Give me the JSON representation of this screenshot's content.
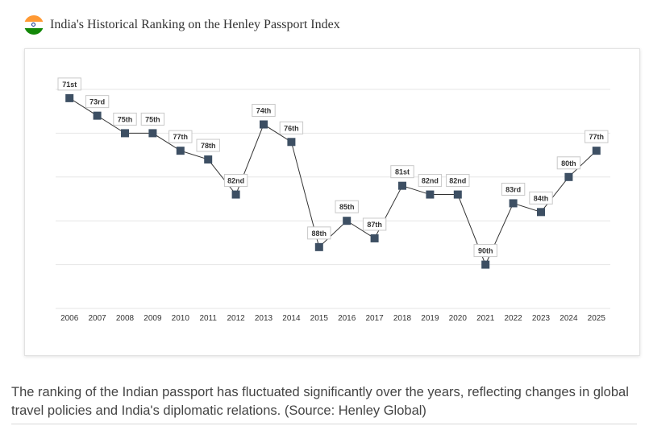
{
  "header": {
    "title": "India's Historical Ranking on the Henley Passport Index",
    "flag_icon": "india-flag-icon",
    "flag_colors": [
      "#ff9933",
      "#ffffff",
      "#138808"
    ]
  },
  "caption": "The ranking of the Indian passport has fluctuated significantly over the years, reflecting changes in global travel policies and India's diplomatic relations. (Source: Henley Global)",
  "colors": {
    "line": "#333333",
    "marker": "#3d4f63",
    "grid": "#e6e6e6"
  },
  "chart_data": {
    "type": "line",
    "title": "",
    "xlabel": "",
    "ylabel": "",
    "grid": true,
    "y_inverted": true,
    "ylim": [
      70,
      95
    ],
    "categories": [
      "2006",
      "2007",
      "2008",
      "2009",
      "2010",
      "2011",
      "2012",
      "2013",
      "2014",
      "2015",
      "2016",
      "2017",
      "2018",
      "2019",
      "2020",
      "2021",
      "2022",
      "2023",
      "2024",
      "2025"
    ],
    "values": [
      71,
      73,
      75,
      75,
      77,
      78,
      82,
      74,
      76,
      88,
      85,
      87,
      81,
      82,
      82,
      90,
      83,
      84,
      80,
      77
    ],
    "labels": [
      "71st",
      "73rd",
      "75th",
      "75th",
      "77th",
      "78th",
      "82nd",
      "74th",
      "76th",
      "88th",
      "85th",
      "87th",
      "81st",
      "82nd",
      "82nd",
      "90th",
      "83rd",
      "84th",
      "80th",
      "77th"
    ]
  }
}
